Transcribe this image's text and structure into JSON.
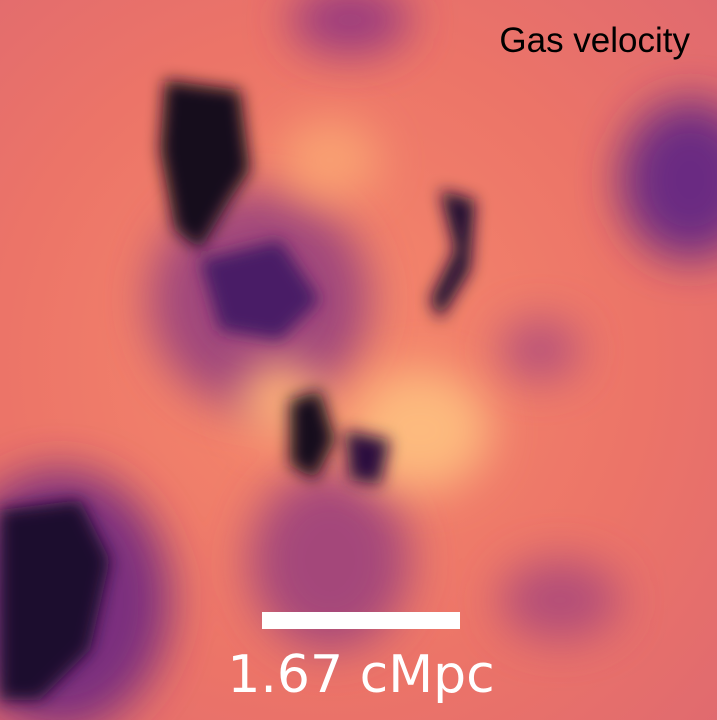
{
  "label": "Gas velocity",
  "scale_bar": {
    "label": "1.67 cMpc"
  }
}
